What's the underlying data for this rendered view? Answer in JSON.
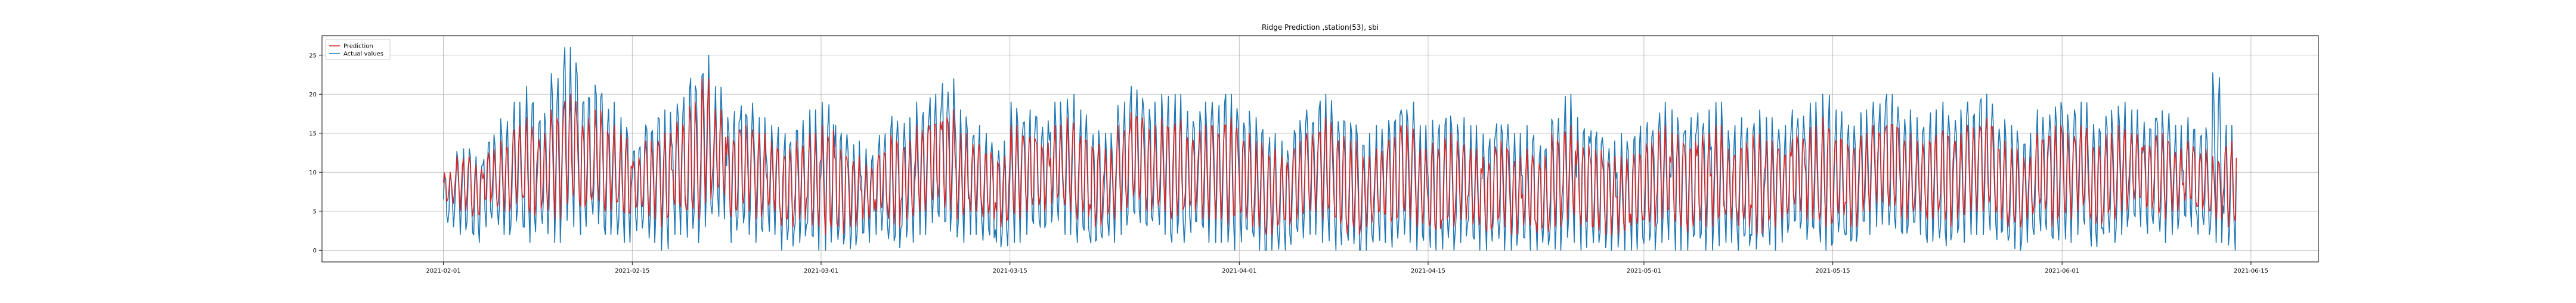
{
  "chart_data": {
    "type": "line",
    "title": "Ridge Prediction ,station(53), sbi",
    "xlabel": "",
    "ylabel": "",
    "xlim": [
      "2021-01-23",
      "2021-06-20"
    ],
    "ylim": [
      -1.5,
      27.5
    ],
    "x_ticks": [
      "2021-02-01",
      "2021-02-15",
      "2021-03-01",
      "2021-03-15",
      "2021-04-01",
      "2021-04-15",
      "2021-05-01",
      "2021-05-15",
      "2021-06-01",
      "2021-06-15"
    ],
    "y_ticks": [
      0,
      5,
      10,
      15,
      20,
      25
    ],
    "y_tick_labels": [
      "0",
      "5",
      "10",
      "15",
      "20",
      "25"
    ],
    "grid": true,
    "legend_position": "top-left",
    "x_range": [
      "2021-02-01",
      "2021-06-10"
    ],
    "sampling": "approx. hourly; values approximated as daily highs/lows read from the chart",
    "series": [
      {
        "name": "Prediction",
        "color": "#d62728",
        "daily_max": [
          10,
          12,
          11,
          13,
          14,
          16,
          17,
          15,
          18,
          20,
          17,
          18,
          16,
          15,
          12,
          14,
          15,
          17,
          19,
          22,
          18,
          15,
          16,
          15,
          14,
          13,
          14,
          15,
          16,
          13,
          12,
          11,
          13,
          15,
          14,
          16,
          17,
          18,
          15,
          14,
          13,
          12,
          16,
          15,
          14,
          16,
          17,
          15,
          14,
          13,
          16,
          18,
          16,
          17,
          17,
          15,
          16,
          16,
          17,
          15,
          14,
          13,
          12,
          14,
          15,
          17,
          15,
          14,
          12,
          13,
          15,
          16,
          13,
          14,
          15,
          14,
          13,
          12,
          14,
          12,
          13,
          12,
          15,
          16,
          14,
          13,
          12,
          12,
          13,
          14,
          16,
          15,
          14,
          15,
          16,
          13,
          14,
          15,
          14,
          13,
          15,
          16,
          17,
          15,
          14,
          15,
          16,
          17,
          15,
          14,
          15,
          16,
          15,
          16,
          17,
          14,
          13,
          12,
          15,
          16,
          15,
          16,
          14,
          15,
          16,
          15,
          14,
          15,
          13,
          14,
          13,
          12,
          14
        ],
        "daily_min": [
          6,
          5,
          4,
          6,
          5,
          6,
          4,
          5,
          4,
          6,
          5,
          6,
          5,
          4,
          5,
          4,
          3,
          5,
          4,
          6,
          7,
          4,
          5,
          4,
          5,
          3,
          4,
          3,
          2,
          2,
          3,
          4,
          5,
          3,
          4,
          5,
          6,
          5,
          4,
          5,
          4,
          3,
          4,
          5,
          5,
          6,
          5,
          4,
          3,
          4,
          5,
          6,
          5,
          5,
          4,
          5,
          4,
          4,
          3,
          4,
          3,
          2,
          3,
          4,
          5,
          4,
          3,
          2,
          3,
          4,
          3,
          4,
          3,
          2,
          3,
          4,
          3,
          2,
          3,
          2,
          3,
          2,
          3,
          4,
          3,
          2,
          2,
          2,
          3,
          3,
          4,
          3,
          2,
          3,
          3,
          4,
          3,
          2,
          3,
          4,
          5,
          4,
          3,
          4,
          3,
          5,
          6,
          5,
          4,
          5,
          4,
          3,
          4,
          5,
          5,
          4,
          3,
          4,
          5,
          3,
          4,
          5,
          3,
          4,
          5,
          6,
          5,
          4,
          5,
          6,
          5,
          4,
          3
        ]
      },
      {
        "name": "Actual values",
        "color": "#1f77b4",
        "daily_max": [
          10,
          13,
          12,
          15,
          17,
          19,
          21,
          18,
          23,
          26,
          21,
          22,
          19,
          17,
          14,
          17,
          18,
          20,
          23,
          25,
          21,
          18,
          19,
          17,
          16,
          15,
          17,
          18,
          19,
          16,
          14,
          13,
          15,
          18,
          17,
          19,
          20,
          22,
          18,
          16,
          15,
          14,
          19,
          18,
          17,
          19,
          20,
          18,
          16,
          15,
          19,
          21,
          19,
          20,
          20,
          18,
          19,
          19,
          20,
          18,
          17,
          15,
          14,
          17,
          18,
          20,
          18,
          17,
          15,
          16,
          18,
          19,
          16,
          17,
          18,
          17,
          16,
          15,
          17,
          15,
          16,
          14,
          18,
          20,
          17,
          16,
          14,
          15,
          16,
          17,
          19,
          18,
          17,
          18,
          19,
          16,
          17,
          18,
          17,
          16,
          18,
          19,
          20,
          18,
          17,
          18,
          19,
          20,
          18,
          17,
          18,
          19,
          18,
          19,
          20,
          17,
          16,
          15,
          18,
          19,
          18,
          19,
          17,
          18,
          19,
          18,
          17,
          18,
          16,
          17,
          16,
          23,
          16
        ],
        "daily_min": [
          3,
          2,
          1,
          3,
          2,
          3,
          1,
          2,
          1,
          3,
          2,
          3,
          2,
          1,
          2,
          1,
          0,
          2,
          1,
          3,
          4,
          1,
          2,
          1,
          2,
          0,
          1,
          0,
          0,
          0,
          0,
          1,
          2,
          0,
          1,
          2,
          3,
          2,
          1,
          2,
          1,
          0,
          1,
          2,
          2,
          3,
          2,
          1,
          0,
          1,
          2,
          3,
          2,
          2,
          1,
          2,
          1,
          1,
          0,
          1,
          0,
          0,
          0,
          1,
          2,
          1,
          0,
          0,
          0,
          1,
          0,
          1,
          0,
          0,
          0,
          1,
          0,
          0,
          0,
          0,
          0,
          0,
          0,
          1,
          0,
          0,
          0,
          0,
          0,
          0,
          1,
          0,
          0,
          0,
          0,
          1,
          0,
          0,
          0,
          1,
          2,
          1,
          0,
          1,
          0,
          2,
          3,
          2,
          1,
          2,
          1,
          0,
          1,
          2,
          2,
          1,
          0,
          1,
          2,
          0,
          1,
          2,
          0,
          1,
          2,
          3,
          2,
          1,
          2,
          3,
          2,
          1,
          0
        ]
      }
    ]
  }
}
